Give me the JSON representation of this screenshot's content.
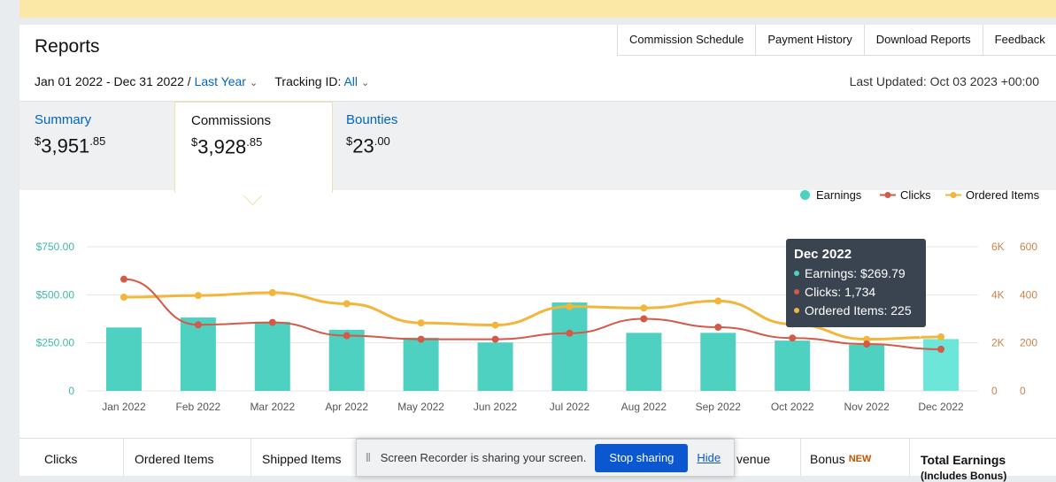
{
  "header": {
    "title": "Reports",
    "nav": [
      "Commission Schedule",
      "Payment History",
      "Download Reports",
      "Feedback"
    ]
  },
  "filters": {
    "date_range": "Jan 01 2022 - Dec 31 2022 /",
    "period": "Last Year",
    "tracking_label": "Tracking ID:",
    "tracking_value": "All",
    "last_updated": "Last Updated: Oct 03 2023 +00:00"
  },
  "tabs": [
    {
      "label": "Summary",
      "currency": "$",
      "whole": "3,951",
      "cents": ".85"
    },
    {
      "label": "Commissions",
      "currency": "$",
      "whole": "3,928",
      "cents": ".85"
    },
    {
      "label": "Bounties",
      "currency": "$",
      "whole": "23",
      "cents": ".00"
    }
  ],
  "legend": {
    "earnings": "Earnings",
    "clicks": "Clicks",
    "ordered": "Ordered Items"
  },
  "colors": {
    "earnings": "#4fd1c1",
    "earnings_highlight": "#6de6da",
    "clicks": "#d35a47",
    "ordered": "#f2b63b",
    "earnings_axis": "#3fb9a8",
    "right_axis": "#c9844a"
  },
  "tooltip": {
    "title": "Dec 2022",
    "earnings": "Earnings: $269.79",
    "clicks": "Clicks: 1,734",
    "ordered": "Ordered Items: 225"
  },
  "chart_data": {
    "type": "bar",
    "categories": [
      "Jan 2022",
      "Feb 2022",
      "Mar 2022",
      "Apr 2022",
      "May 2022",
      "Jun 2022",
      "Jul 2022",
      "Aug 2022",
      "Sep 2022",
      "Oct 2022",
      "Nov 2022",
      "Dec 2022"
    ],
    "series": [
      {
        "name": "Earnings",
        "type": "bar",
        "axis": "left",
        "values": [
          330,
          382,
          360,
          318,
          277,
          252,
          460,
          302,
          302,
          262,
          240,
          269.79
        ]
      },
      {
        "name": "Clicks",
        "type": "line",
        "axis": "right1",
        "values": [
          4650,
          2750,
          2850,
          2300,
          2150,
          2150,
          2400,
          3000,
          2650,
          2200,
          1950,
          1734
        ]
      },
      {
        "name": "Ordered Items",
        "type": "line",
        "axis": "right2",
        "values": [
          390,
          397,
          409,
          363,
          283,
          274,
          351,
          345,
          374,
          278,
          215,
          225
        ]
      }
    ],
    "y_left": {
      "min": 0,
      "max": 750,
      "ticks": [
        "0",
        "$250.00",
        "$500.00",
        "$750.00"
      ]
    },
    "y_right1": {
      "min": 0,
      "max": 6000,
      "ticks": [
        "0",
        "2K",
        "4K",
        "6K"
      ]
    },
    "y_right2": {
      "min": 0,
      "max": 600,
      "ticks": [
        "0",
        "200",
        "400",
        "600"
      ]
    },
    "grid": true,
    "legend_position": "top-right"
  },
  "bottom": {
    "clicks": "Clicks",
    "ordered": "Ordered Items",
    "shipped": "Shipped Items",
    "revenue_fragment": "venue",
    "bonus": "Bonus",
    "bonus_badge": "NEW",
    "total": "Total Earnings",
    "total_sub": "(Includes Bonus)"
  },
  "recorder": {
    "message": "Screen Recorder is sharing your screen.",
    "stop": "Stop sharing",
    "hide": "Hide"
  }
}
